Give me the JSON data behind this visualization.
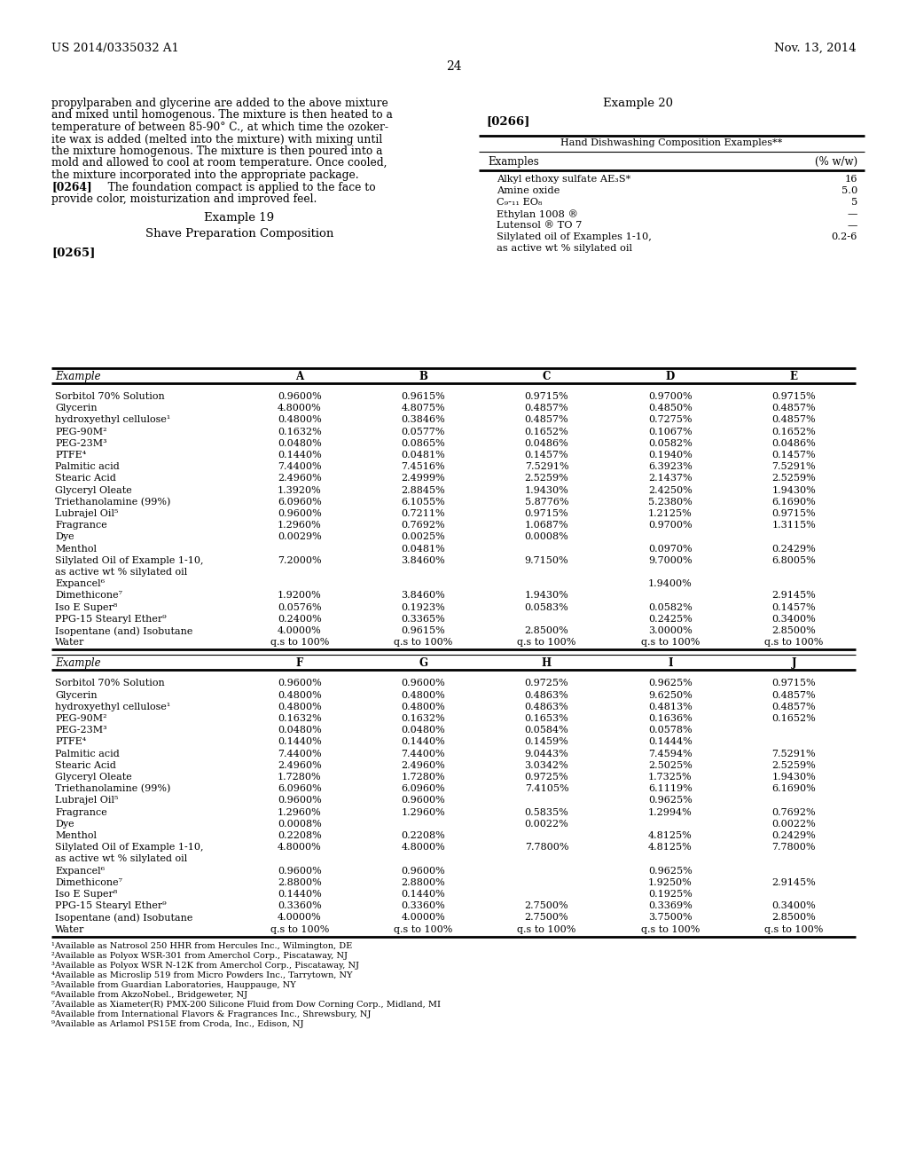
{
  "header_left": "US 2014/0335032 A1",
  "header_right": "Nov. 13, 2014",
  "page_num": "24",
  "left_text_lines": [
    "propylparaben and glycerine are added to the above mixture",
    "and mixed until homogenous. The mixture is then heated to a",
    "temperature of between 85-90° C., at which time the ozoker-",
    "ite wax is added (melted into the mixture) with mixing until",
    "the mixture homogenous. The mixture is then poured into a",
    "mold and allowed to cool at room temperature. Once cooled,",
    "the mixture incorporated into the appropriate package."
  ],
  "para0264_bold": "[0264]",
  "para0264_rest": "   The foundation compact is applied to the face to",
  "para0264_line2": "provide color, moisturization and improved feel.",
  "example19_title": "Example 19",
  "example19_subtitle": "Shave Preparation Composition",
  "example19_tag": "[0265]",
  "right_example_title": "Example 20",
  "right_tag": "[0266]",
  "hand_dish_title": "Hand Dishwashing Composition Examples**",
  "hand_dish_col1": "Examples",
  "hand_dish_col2": "(% w/w)",
  "hand_dish_rows": [
    [
      "Alkyl ethoxy sulfate AE₃S*",
      "16"
    ],
    [
      "Amine oxide",
      "5.0"
    ],
    [
      "C₉-₁₁ EO₈",
      "5"
    ],
    [
      "Ethylan 1008 ®",
      "—"
    ],
    [
      "Lutensol ® TO 7",
      "—"
    ],
    [
      "Silylated oil of Examples 1-10,",
      "0.2-6"
    ],
    [
      "as active wt % silylated oil",
      ""
    ]
  ],
  "table1_header": [
    "Example",
    "A",
    "B",
    "C",
    "D",
    "E"
  ],
  "table1_rows": [
    [
      "Sorbitol 70% Solution",
      "0.9600%",
      "0.9615%",
      "0.9715%",
      "0.9700%",
      "0.9715%"
    ],
    [
      "Glycerin",
      "4.8000%",
      "4.8075%",
      "0.4857%",
      "0.4850%",
      "0.4857%"
    ],
    [
      "hydroxyethyl cellulose¹",
      "0.4800%",
      "0.3846%",
      "0.4857%",
      "0.7275%",
      "0.4857%"
    ],
    [
      "PEG-90M²",
      "0.1632%",
      "0.0577%",
      "0.1652%",
      "0.1067%",
      "0.1652%"
    ],
    [
      "PEG-23M³",
      "0.0480%",
      "0.0865%",
      "0.0486%",
      "0.0582%",
      "0.0486%"
    ],
    [
      "PTFE⁴",
      "0.1440%",
      "0.0481%",
      "0.1457%",
      "0.1940%",
      "0.1457%"
    ],
    [
      "Palmitic acid",
      "7.4400%",
      "7.4516%",
      "7.5291%",
      "6.3923%",
      "7.5291%"
    ],
    [
      "Stearic Acid",
      "2.4960%",
      "2.4999%",
      "2.5259%",
      "2.1437%",
      "2.5259%"
    ],
    [
      "Glyceryl Oleate",
      "1.3920%",
      "2.8845%",
      "1.9430%",
      "2.4250%",
      "1.9430%"
    ],
    [
      "Triethanolamine (99%)",
      "6.0960%",
      "6.1055%",
      "5.8776%",
      "5.2380%",
      "6.1690%"
    ],
    [
      "Lubrajel Oil⁵",
      "0.9600%",
      "0.7211%",
      "0.9715%",
      "1.2125%",
      "0.9715%"
    ],
    [
      "Fragrance",
      "1.2960%",
      "0.7692%",
      "1.0687%",
      "0.9700%",
      "1.3115%"
    ],
    [
      "Dye",
      "0.0029%",
      "0.0025%",
      "0.0008%",
      "",
      ""
    ],
    [
      "Menthol",
      "",
      "0.0481%",
      "",
      "0.0970%",
      "0.2429%"
    ],
    [
      "Silylated Oil of Example 1-10,",
      "7.2000%",
      "3.8460%",
      "9.7150%",
      "9.7000%",
      "6.8005%"
    ],
    [
      "as active wt % silylated oil",
      "",
      "",
      "",
      "",
      ""
    ],
    [
      "Expancel⁶",
      "",
      "",
      "",
      "1.9400%",
      ""
    ],
    [
      "Dimethicone⁷",
      "1.9200%",
      "3.8460%",
      "1.9430%",
      "",
      "2.9145%"
    ],
    [
      "Iso E Super⁸",
      "0.0576%",
      "0.1923%",
      "0.0583%",
      "0.0582%",
      "0.1457%"
    ],
    [
      "PPG-15 Stearyl Ether⁹",
      "0.2400%",
      "0.3365%",
      "",
      "0.2425%",
      "0.3400%"
    ],
    [
      "Isopentane (and) Isobutane",
      "4.0000%",
      "0.9615%",
      "2.8500%",
      "3.0000%",
      "2.8500%"
    ],
    [
      "Water",
      "q.s to 100%",
      "q.s to 100%",
      "q.s to 100%",
      "q.s to 100%",
      "q.s to 100%"
    ]
  ],
  "table2_header": [
    "Example",
    "F",
    "G",
    "H",
    "I",
    "J"
  ],
  "table2_rows": [
    [
      "Sorbitol 70% Solution",
      "0.9600%",
      "0.9600%",
      "0.9725%",
      "0.9625%",
      "0.9715%"
    ],
    [
      "Glycerin",
      "0.4800%",
      "0.4800%",
      "0.4863%",
      "9.6250%",
      "0.4857%"
    ],
    [
      "hydroxyethyl cellulose¹",
      "0.4800%",
      "0.4800%",
      "0.4863%",
      "0.4813%",
      "0.4857%"
    ],
    [
      "PEG-90M²",
      "0.1632%",
      "0.1632%",
      "0.1653%",
      "0.1636%",
      "0.1652%"
    ],
    [
      "PEG-23M³",
      "0.0480%",
      "0.0480%",
      "0.0584%",
      "0.0578%",
      ""
    ],
    [
      "PTFE⁴",
      "0.1440%",
      "0.1440%",
      "0.1459%",
      "0.1444%",
      ""
    ],
    [
      "Palmitic acid",
      "7.4400%",
      "7.4400%",
      "9.0443%",
      "7.4594%",
      "7.5291%"
    ],
    [
      "Stearic Acid",
      "2.4960%",
      "2.4960%",
      "3.0342%",
      "2.5025%",
      "2.5259%"
    ],
    [
      "Glyceryl Oleate",
      "1.7280%",
      "1.7280%",
      "0.9725%",
      "1.7325%",
      "1.9430%"
    ],
    [
      "Triethanolamine (99%)",
      "6.0960%",
      "6.0960%",
      "7.4105%",
      "6.1119%",
      "6.1690%"
    ],
    [
      "Lubrajel Oil⁵",
      "0.9600%",
      "0.9600%",
      "",
      "0.9625%",
      ""
    ],
    [
      "Fragrance",
      "1.2960%",
      "1.2960%",
      "0.5835%",
      "1.2994%",
      "0.7692%"
    ],
    [
      "Dye",
      "0.0008%",
      "",
      "0.0022%",
      "",
      "0.0022%"
    ],
    [
      "Menthol",
      "0.2208%",
      "0.2208%",
      "",
      "4.8125%",
      "0.2429%"
    ],
    [
      "Silylated Oil of Example 1-10,",
      "4.8000%",
      "4.8000%",
      "7.7800%",
      "4.8125%",
      "7.7800%"
    ],
    [
      "as active wt % silylated oil",
      "",
      "",
      "",
      "",
      ""
    ],
    [
      "Expancel⁶",
      "0.9600%",
      "0.9600%",
      "",
      "0.9625%",
      ""
    ],
    [
      "Dimethicone⁷",
      "2.8800%",
      "2.8800%",
      "",
      "1.9250%",
      "2.9145%"
    ],
    [
      "Iso E Super⁸",
      "0.1440%",
      "0.1440%",
      "",
      "0.1925%",
      ""
    ],
    [
      "PPG-15 Stearyl Ether⁹",
      "0.3360%",
      "0.3360%",
      "2.7500%",
      "0.3369%",
      "0.3400%"
    ],
    [
      "Isopentane (and) Isobutane",
      "4.0000%",
      "4.0000%",
      "2.7500%",
      "3.7500%",
      "2.8500%"
    ],
    [
      "Water",
      "q.s to 100%",
      "q.s to 100%",
      "q.s to 100%",
      "q.s to 100%",
      "q.s to 100%"
    ]
  ],
  "footnotes": [
    "¹Available as Natrosol 250 HHR from Hercules Inc., Wilmington, DE",
    "²Available as Polyox WSR-301 from Amerchol Corp., Piscataway, NJ",
    "³Available as Polyox WSR N-12K from Amerchol Corp., Piscataway, NJ",
    "⁴Available as Microslip 519 from Micro Powders Inc., Tarrytown, NY",
    "⁵Available from Guardian Laboratories, Hauppauge, NY",
    "⁶Available from AkzoNobel., Bridgeweter, NJ",
    "⁷Available as Xiameter(R) PMX-200 Silicone Fluid from Dow Corning Corp., Midland, MI",
    "⁸Available from International Flavors & Fragrances Inc., Shrewsbury, NJ",
    "⁹Available as Arlamol PS15E from Croda, Inc., Edison, NJ"
  ]
}
